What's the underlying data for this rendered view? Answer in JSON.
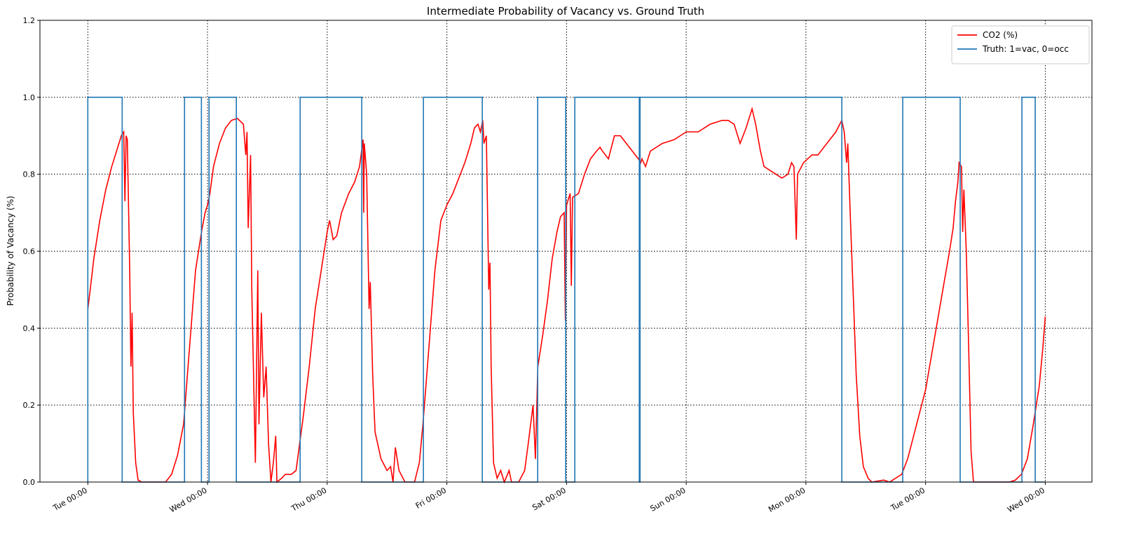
{
  "chart_data": {
    "type": "line",
    "title": "Intermediate Probability of Vacancy vs. Ground Truth",
    "y_label": "Probability of Vacancy (%)",
    "xlim": [
      -0.4,
      8.39
    ],
    "ylim": [
      0,
      1.2
    ],
    "xticks": [
      {
        "value": 0,
        "label": "Tue 00:00"
      },
      {
        "value": 1,
        "label": "Wed 00:00"
      },
      {
        "value": 2,
        "label": "Thu 00:00"
      },
      {
        "value": 3,
        "label": "Fri 00:00"
      },
      {
        "value": 4,
        "label": "Sat 00:00"
      },
      {
        "value": 5,
        "label": "Sun 00:00"
      },
      {
        "value": 6,
        "label": "Mon 00:00"
      },
      {
        "value": 7,
        "label": "Tue 00:00"
      },
      {
        "value": 8,
        "label": "Wed 00:00"
      }
    ],
    "yticks": [
      {
        "value": 0,
        "label": "0.0"
      },
      0.2,
      0.4,
      0.6,
      0.8,
      {
        "value": 1,
        "label": "1.0"
      },
      1.2
    ],
    "grid": true,
    "legend": "upper right",
    "series": [
      {
        "name": "CO2 (%)",
        "color": "#ff0000",
        "x": [
          0,
          0.02,
          0.05,
          0.1,
          0.15,
          0.2,
          0.25,
          0.28,
          0.3,
          0.31,
          0.32,
          0.33,
          0.35,
          0.36,
          0.37,
          0.38,
          0.4,
          0.42,
          0.45,
          0.5,
          0.6,
          0.65,
          0.7,
          0.75,
          0.8,
          0.85,
          0.9,
          0.95,
          0.98,
          1,
          1.02,
          1.05,
          1.1,
          1.15,
          1.2,
          1.25,
          1.3,
          1.32,
          1.33,
          1.34,
          1.36,
          1.37,
          1.4,
          1.42,
          1.43,
          1.45,
          1.47,
          1.49,
          1.51,
          1.53,
          1.55,
          1.57,
          1.58,
          1.62,
          1.65,
          1.7,
          1.74,
          1.77,
          1.8,
          1.85,
          1.9,
          1.95,
          2,
          2.02,
          2.05,
          2.08,
          2.12,
          2.18,
          2.23,
          2.27,
          2.3,
          2.305,
          2.31,
          2.33,
          2.35,
          2.36,
          2.38,
          2.4,
          2.45,
          2.5,
          2.53,
          2.55,
          2.57,
          2.6,
          2.65,
          2.73,
          2.77,
          2.8,
          2.85,
          2.9,
          2.95,
          3,
          3.05,
          3.1,
          3.15,
          3.2,
          3.23,
          3.26,
          3.28,
          3.3,
          3.31,
          3.33,
          3.35,
          3.36,
          3.37,
          3.39,
          3.42,
          3.45,
          3.48,
          3.52,
          3.54,
          3.57,
          3.6,
          3.65,
          3.68,
          3.72,
          3.74,
          3.76,
          3.8,
          3.84,
          3.88,
          3.92,
          3.95,
          3.98,
          3.99,
          4,
          4.03,
          4.04,
          4.05,
          4.1,
          4.15,
          4.2,
          4.25,
          4.28,
          4.3,
          4.35,
          4.4,
          4.45,
          4.5,
          4.55,
          4.6,
          4.62,
          4.63,
          4.66,
          4.7,
          4.8,
          4.9,
          5,
          5.1,
          5.2,
          5.3,
          5.35,
          5.4,
          5.45,
          5.5,
          5.55,
          5.58,
          5.62,
          5.65,
          5.7,
          5.75,
          5.8,
          5.85,
          5.88,
          5.9,
          5.92,
          5.93,
          5.98,
          6.05,
          6.1,
          6.15,
          6.2,
          6.25,
          6.3,
          6.32,
          6.34,
          6.35,
          6.37,
          6.4,
          6.42,
          6.45,
          6.48,
          6.52,
          6.55,
          6.65,
          6.7,
          6.75,
          6.8,
          6.85,
          6.9,
          6.95,
          7,
          7.05,
          7.1,
          7.15,
          7.2,
          7.23,
          7.25,
          7.27,
          7.28,
          7.3,
          7.31,
          7.32,
          7.34,
          7.36,
          7.38,
          7.4,
          7.5,
          7.6,
          7.7,
          7.75,
          7.8,
          7.85,
          7.9,
          7.95,
          7.98,
          8
        ],
        "values": [
          0.45,
          0.5,
          0.58,
          0.68,
          0.76,
          0.82,
          0.87,
          0.9,
          0.91,
          0.73,
          0.9,
          0.89,
          0.55,
          0.3,
          0.44,
          0.18,
          0.05,
          0.005,
          0,
          0,
          0,
          0,
          0.02,
          0.07,
          0.15,
          0.35,
          0.55,
          0.65,
          0.7,
          0.72,
          0.75,
          0.82,
          0.88,
          0.92,
          0.94,
          0.945,
          0.93,
          0.85,
          0.91,
          0.66,
          0.85,
          0.5,
          0.05,
          0.55,
          0.15,
          0.44,
          0.22,
          0.3,
          0.1,
          0,
          0.05,
          0.12,
          0,
          0.01,
          0.02,
          0.02,
          0.03,
          0.1,
          0.17,
          0.3,
          0.45,
          0.55,
          0.65,
          0.68,
          0.63,
          0.64,
          0.7,
          0.75,
          0.78,
          0.82,
          0.89,
          0.7,
          0.88,
          0.8,
          0.45,
          0.52,
          0.28,
          0.13,
          0.06,
          0.03,
          0.04,
          0,
          0.09,
          0.03,
          0,
          0,
          0.05,
          0.15,
          0.35,
          0.55,
          0.68,
          0.72,
          0.75,
          0.79,
          0.83,
          0.88,
          0.92,
          0.93,
          0.91,
          0.94,
          0.88,
          0.9,
          0.5,
          0.57,
          0.3,
          0.05,
          0.01,
          0.03,
          0,
          0.03,
          0,
          0,
          0,
          0.03,
          0.1,
          0.2,
          0.06,
          0.3,
          0.38,
          0.47,
          0.58,
          0.65,
          0.69,
          0.7,
          0.42,
          0.72,
          0.75,
          0.51,
          0.74,
          0.75,
          0.8,
          0.84,
          0.86,
          0.87,
          0.86,
          0.84,
          0.9,
          0.9,
          0.88,
          0.86,
          0.84,
          0.83,
          0.84,
          0.82,
          0.86,
          0.88,
          0.89,
          0.91,
          0.91,
          0.93,
          0.94,
          0.94,
          0.93,
          0.88,
          0.92,
          0.97,
          0.93,
          0.86,
          0.82,
          0.81,
          0.8,
          0.79,
          0.8,
          0.83,
          0.82,
          0.63,
          0.8,
          0.83,
          0.85,
          0.85,
          0.87,
          0.89,
          0.91,
          0.94,
          0.91,
          0.83,
          0.88,
          0.7,
          0.45,
          0.28,
          0.12,
          0.04,
          0.01,
          0,
          0.005,
          0,
          0.01,
          0.02,
          0.06,
          0.12,
          0.18,
          0.24,
          0.33,
          0.42,
          0.51,
          0.6,
          0.66,
          0.73,
          0.78,
          0.83,
          0.82,
          0.65,
          0.76,
          0.6,
          0.35,
          0.08,
          0,
          0,
          0,
          0,
          0.005,
          0.02,
          0.06,
          0.15,
          0.25,
          0.35,
          0.43
        ]
      },
      {
        "name": "Truth: 1=vac, 0=occ",
        "color": "#1f77b4",
        "x": [
          0,
          0,
          0.287,
          0.287,
          0.808,
          0.808,
          0.949,
          0.949,
          1.013,
          1.013,
          1.241,
          1.241,
          1.774,
          1.774,
          2.289,
          2.289,
          2.804,
          2.804,
          3.296,
          3.296,
          3.759,
          3.759,
          3.993,
          3.993,
          4.069,
          4.069,
          4.608,
          4.608,
          4.614,
          4.614,
          6.3,
          6.3,
          6.809,
          6.809,
          7.289,
          7.289,
          7.805,
          7.805,
          7.916,
          7.916,
          8
        ],
        "values": [
          0,
          1,
          1,
          0,
          0,
          1,
          1,
          0,
          0,
          1,
          1,
          0,
          0,
          1,
          1,
          0,
          0,
          1,
          1,
          0,
          0,
          1,
          1,
          0,
          0,
          1,
          1,
          0,
          0,
          1,
          1,
          0,
          0,
          1,
          1,
          0,
          0,
          1,
          1,
          0,
          0
        ]
      }
    ]
  }
}
